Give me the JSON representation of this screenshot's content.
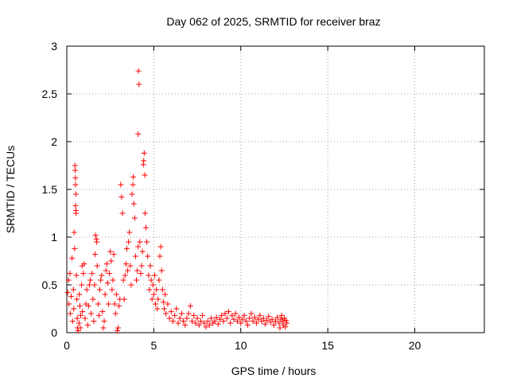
{
  "chart_data": {
    "type": "scatter",
    "title": "Day 062 of 2025, SRMTID for receiver braz",
    "xlabel": "GPS time / hours",
    "ylabel": "SRMTID / TECUs",
    "xlim": [
      0,
      24
    ],
    "ylim": [
      0,
      3
    ],
    "xticks": [
      0,
      5,
      10,
      15,
      20
    ],
    "xtick_labels": [
      "0",
      "5",
      "10",
      "15",
      "20"
    ],
    "yticks": [
      0,
      0.5,
      1,
      1.5,
      2,
      2.5,
      3
    ],
    "ytick_labels": [
      "0",
      "0.5",
      "1",
      "1.5",
      "2",
      "2.5",
      "3"
    ],
    "grid": true,
    "marker": "plus",
    "series": [
      {
        "name": "SRMTID",
        "color": "#ff0000",
        "points": [
          [
            0.05,
            0.42
          ],
          [
            0.1,
            0.55
          ],
          [
            0.12,
            0.3
          ],
          [
            0.18,
            0.62
          ],
          [
            0.2,
            0.2
          ],
          [
            0.25,
            0.38
          ],
          [
            0.3,
            0.78
          ],
          [
            0.33,
            0.12
          ],
          [
            0.38,
            0.45
          ],
          [
            0.4,
            0.25
          ],
          [
            0.42,
            1.05
          ],
          [
            0.45,
            0.88
          ],
          [
            0.47,
            1.75
          ],
          [
            0.48,
            1.7
          ],
          [
            0.5,
            1.62
          ],
          [
            0.5,
            1.55
          ],
          [
            0.52,
            1.45
          ],
          [
            0.5,
            1.33
          ],
          [
            0.52,
            1.28
          ],
          [
            0.53,
            1.25
          ],
          [
            0.55,
            0.6
          ],
          [
            0.58,
            0.35
          ],
          [
            0.6,
            0.15
          ],
          [
            0.62,
            0.05
          ],
          [
            0.65,
            0.02
          ],
          [
            0.7,
            0.1
          ],
          [
            0.72,
            0.4
          ],
          [
            0.75,
            0.28
          ],
          [
            0.78,
            0.05
          ],
          [
            0.8,
            0.18
          ],
          [
            0.85,
            0.5
          ],
          [
            0.88,
            0.7
          ],
          [
            0.9,
            0.22
          ],
          [
            0.95,
            0.62
          ],
          [
            1.0,
            0.72
          ],
          [
            1.05,
            0.15
          ],
          [
            1.1,
            0.3
          ],
          [
            1.15,
            0.45
          ],
          [
            1.2,
            0.08
          ],
          [
            1.25,
            0.28
          ],
          [
            1.3,
            0.5
          ],
          [
            1.35,
            0.55
          ],
          [
            1.4,
            0.2
          ],
          [
            1.45,
            0.62
          ],
          [
            1.5,
            0.35
          ],
          [
            1.55,
            0.12
          ],
          [
            1.6,
            0.5
          ],
          [
            1.62,
            0.82
          ],
          [
            1.65,
            1.02
          ],
          [
            1.7,
            0.98
          ],
          [
            1.72,
            0.95
          ],
          [
            1.75,
            0.7
          ],
          [
            1.8,
            0.3
          ],
          [
            1.85,
            0.18
          ],
          [
            1.9,
            0.45
          ],
          [
            1.95,
            0.55
          ],
          [
            2.0,
            0.6
          ],
          [
            2.05,
            0.22
          ],
          [
            2.1,
            0.05
          ],
          [
            2.15,
            0.12
          ],
          [
            2.2,
            0.4
          ],
          [
            2.25,
            0.65
          ],
          [
            2.3,
            0.72
          ],
          [
            2.35,
            0.52
          ],
          [
            2.4,
            0.3
          ],
          [
            2.45,
            0.62
          ],
          [
            2.5,
            0.85
          ],
          [
            2.55,
            0.75
          ],
          [
            2.6,
            0.45
          ],
          [
            2.65,
            0.55
          ],
          [
            2.7,
            0.82
          ],
          [
            2.75,
            0.3
          ],
          [
            2.8,
            0.2
          ],
          [
            2.85,
            0.4
          ],
          [
            2.9,
            0.02
          ],
          [
            2.95,
            0.05
          ],
          [
            3.0,
            0.28
          ],
          [
            3.05,
            0.35
          ],
          [
            3.1,
            1.55
          ],
          [
            3.15,
            1.42
          ],
          [
            3.2,
            1.25
          ],
          [
            3.25,
            0.55
          ],
          [
            3.3,
            0.35
          ],
          [
            3.35,
            0.6
          ],
          [
            3.4,
            0.72
          ],
          [
            3.45,
            0.88
          ],
          [
            3.5,
            0.65
          ],
          [
            3.55,
            0.95
          ],
          [
            3.6,
            1.05
          ],
          [
            3.65,
            0.7
          ],
          [
            3.7,
            0.5
          ],
          [
            3.75,
            1.45
          ],
          [
            3.8,
            1.55
          ],
          [
            3.82,
            1.63
          ],
          [
            3.85,
            1.35
          ],
          [
            3.9,
            1.2
          ],
          [
            3.95,
            0.8
          ],
          [
            4.0,
            0.55
          ],
          [
            4.05,
            0.65
          ],
          [
            4.1,
            0.9
          ],
          [
            4.12,
            2.74
          ],
          [
            4.15,
            2.6
          ],
          [
            4.1,
            2.08
          ],
          [
            4.2,
            0.95
          ],
          [
            4.25,
            0.62
          ],
          [
            4.3,
            0.7
          ],
          [
            4.35,
            0.85
          ],
          [
            4.4,
            1.76
          ],
          [
            4.42,
            1.8
          ],
          [
            4.45,
            1.88
          ],
          [
            4.48,
            1.65
          ],
          [
            4.5,
            1.25
          ],
          [
            4.55,
            1.1
          ],
          [
            4.6,
            0.95
          ],
          [
            4.65,
            0.8
          ],
          [
            4.7,
            0.6
          ],
          [
            4.75,
            0.45
          ],
          [
            4.8,
            0.7
          ],
          [
            4.85,
            0.55
          ],
          [
            4.9,
            0.35
          ],
          [
            4.95,
            0.5
          ],
          [
            5.0,
            0.4
          ],
          [
            5.05,
            0.6
          ],
          [
            5.1,
            0.3
          ],
          [
            5.15,
            0.45
          ],
          [
            5.2,
            0.25
          ],
          [
            5.25,
            0.35
          ],
          [
            5.3,
            0.55
          ],
          [
            5.35,
            0.8
          ],
          [
            5.4,
            0.9
          ],
          [
            5.45,
            0.65
          ],
          [
            5.5,
            0.45
          ],
          [
            5.55,
            0.32
          ],
          [
            5.6,
            0.25
          ],
          [
            5.65,
            0.4
          ],
          [
            5.7,
            0.2
          ],
          [
            5.8,
            0.3
          ],
          [
            5.9,
            0.15
          ],
          [
            6.0,
            0.22
          ],
          [
            6.1,
            0.12
          ],
          [
            6.2,
            0.18
          ],
          [
            6.3,
            0.25
          ],
          [
            6.4,
            0.1
          ],
          [
            6.5,
            0.15
          ],
          [
            6.6,
            0.2
          ],
          [
            6.7,
            0.12
          ],
          [
            6.8,
            0.08
          ],
          [
            6.9,
            0.15
          ],
          [
            7.0,
            0.2
          ],
          [
            7.1,
            0.28
          ],
          [
            7.2,
            0.12
          ],
          [
            7.3,
            0.18
          ],
          [
            7.4,
            0.1
          ],
          [
            7.5,
            0.15
          ],
          [
            7.6,
            0.08
          ],
          [
            7.7,
            0.12
          ],
          [
            7.8,
            0.18
          ],
          [
            7.9,
            0.1
          ],
          [
            8.0,
            0.06
          ],
          [
            8.1,
            0.12
          ],
          [
            8.2,
            0.08
          ],
          [
            8.3,
            0.15
          ],
          [
            8.4,
            0.1
          ],
          [
            8.5,
            0.12
          ],
          [
            8.6,
            0.16
          ],
          [
            8.7,
            0.09
          ],
          [
            8.8,
            0.14
          ],
          [
            8.9,
            0.18
          ],
          [
            9.0,
            0.12
          ],
          [
            9.1,
            0.2
          ],
          [
            9.2,
            0.15
          ],
          [
            9.3,
            0.22
          ],
          [
            9.4,
            0.1
          ],
          [
            9.5,
            0.18
          ],
          [
            9.6,
            0.14
          ],
          [
            9.7,
            0.2
          ],
          [
            9.8,
            0.12
          ],
          [
            9.9,
            0.16
          ],
          [
            10.0,
            0.1
          ],
          [
            10.1,
            0.14
          ],
          [
            10.2,
            0.18
          ],
          [
            10.3,
            0.12
          ],
          [
            10.4,
            0.08
          ],
          [
            10.5,
            0.15
          ],
          [
            10.6,
            0.2
          ],
          [
            10.7,
            0.12
          ],
          [
            10.8,
            0.16
          ],
          [
            10.9,
            0.1
          ],
          [
            11.0,
            0.14
          ],
          [
            11.1,
            0.18
          ],
          [
            11.2,
            0.12
          ],
          [
            11.3,
            0.15
          ],
          [
            11.4,
            0.09
          ],
          [
            11.5,
            0.13
          ],
          [
            11.6,
            0.17
          ],
          [
            11.7,
            0.11
          ],
          [
            11.8,
            0.14
          ],
          [
            11.9,
            0.08
          ],
          [
            12.0,
            0.12
          ],
          [
            12.1,
            0.16
          ],
          [
            12.2,
            0.1
          ],
          [
            12.3,
            0.14
          ],
          [
            12.4,
            0.12
          ],
          [
            12.5,
            0.15
          ],
          [
            12.6,
            0.13
          ],
          [
            12.65,
            0.1
          ],
          [
            12.55,
            0.06
          ],
          [
            12.45,
            0.08
          ],
          [
            12.35,
            0.18
          ],
          [
            12.25,
            0.05
          ]
        ]
      }
    ]
  }
}
